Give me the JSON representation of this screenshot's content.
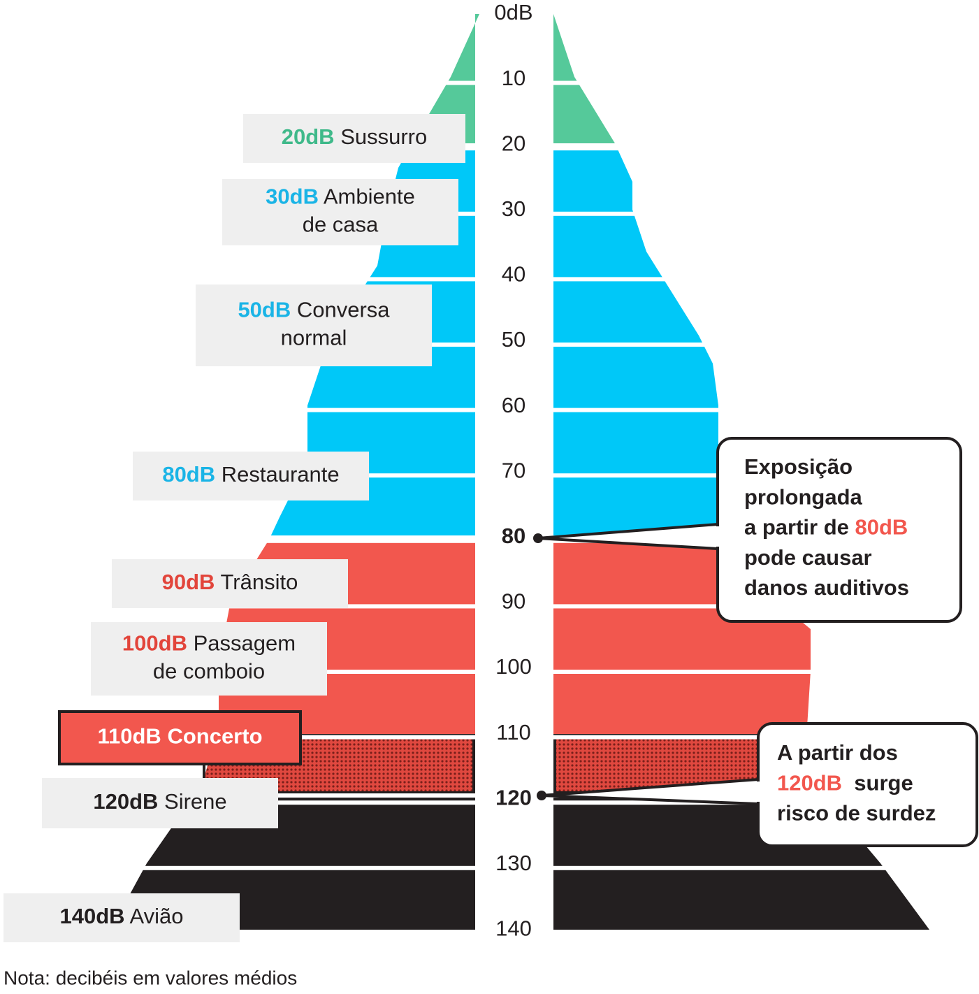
{
  "scale": {
    "ticks": [
      {
        "text": "0dB",
        "bold": false
      },
      {
        "text": "10",
        "bold": false
      },
      {
        "text": "20",
        "bold": false
      },
      {
        "text": "30",
        "bold": false
      },
      {
        "text": "40",
        "bold": false
      },
      {
        "text": "50",
        "bold": false
      },
      {
        "text": "60",
        "bold": false
      },
      {
        "text": "70",
        "bold": false
      },
      {
        "text": "80",
        "bold": true
      },
      {
        "text": "90",
        "bold": false
      },
      {
        "text": "100",
        "bold": false
      },
      {
        "text": "110",
        "bold": false
      },
      {
        "text": "120",
        "bold": true
      },
      {
        "text": "130",
        "bold": false
      },
      {
        "text": "140",
        "bold": false
      }
    ]
  },
  "colors": {
    "green": "#55c99a",
    "blue": "#00c8f8",
    "red": "#f2574e",
    "black": "#231f20"
  },
  "labels": [
    {
      "level": "20dB",
      "lines": [
        "Sussurro"
      ],
      "color": "#3fb98a"
    },
    {
      "level": "30dB",
      "lines": [
        "Ambiente",
        "de casa"
      ],
      "color": "#1ab4e6"
    },
    {
      "level": "50dB",
      "lines": [
        "Conversa",
        "normal"
      ],
      "color": "#1ab4e6"
    },
    {
      "level": "80dB",
      "lines": [
        "Restaurante"
      ],
      "color": "#1ab4e6"
    },
    {
      "level": "90dB",
      "lines": [
        "Trânsito"
      ],
      "color": "#e2453b"
    },
    {
      "level": "100dB",
      "lines": [
        "Passagem",
        "de comboio"
      ],
      "color": "#e2453b"
    },
    {
      "level": "110dB",
      "lines": [
        "Concerto"
      ],
      "color": "#ffffff"
    },
    {
      "level": "120dB",
      "lines": [
        "Sirene"
      ],
      "color": "#231f20"
    },
    {
      "level": "140dB",
      "lines": [
        "Avião"
      ],
      "color": "#231f20"
    }
  ],
  "callouts": [
    {
      "lines": [
        [
          {
            "text": "Exposição",
            "highlight": false
          }
        ],
        [
          {
            "text": "prolongada",
            "highlight": false
          }
        ],
        [
          {
            "text": "a partir de ",
            "highlight": false
          },
          {
            "text": "80dB",
            "highlight": true
          }
        ],
        [
          {
            "text": "pode causar",
            "highlight": false
          }
        ],
        [
          {
            "text": "danos auditivos",
            "highlight": false
          }
        ]
      ]
    },
    {
      "lines": [
        [
          {
            "text": "A partir dos",
            "highlight": false
          }
        ],
        [
          {
            "text": "120dB",
            "highlight": true
          },
          {
            "text": "  surge",
            "highlight": false
          }
        ],
        [
          {
            "text": "risco de surdez",
            "highlight": false
          }
        ]
      ]
    }
  ],
  "note": "Nota: decibéis em valores médios"
}
